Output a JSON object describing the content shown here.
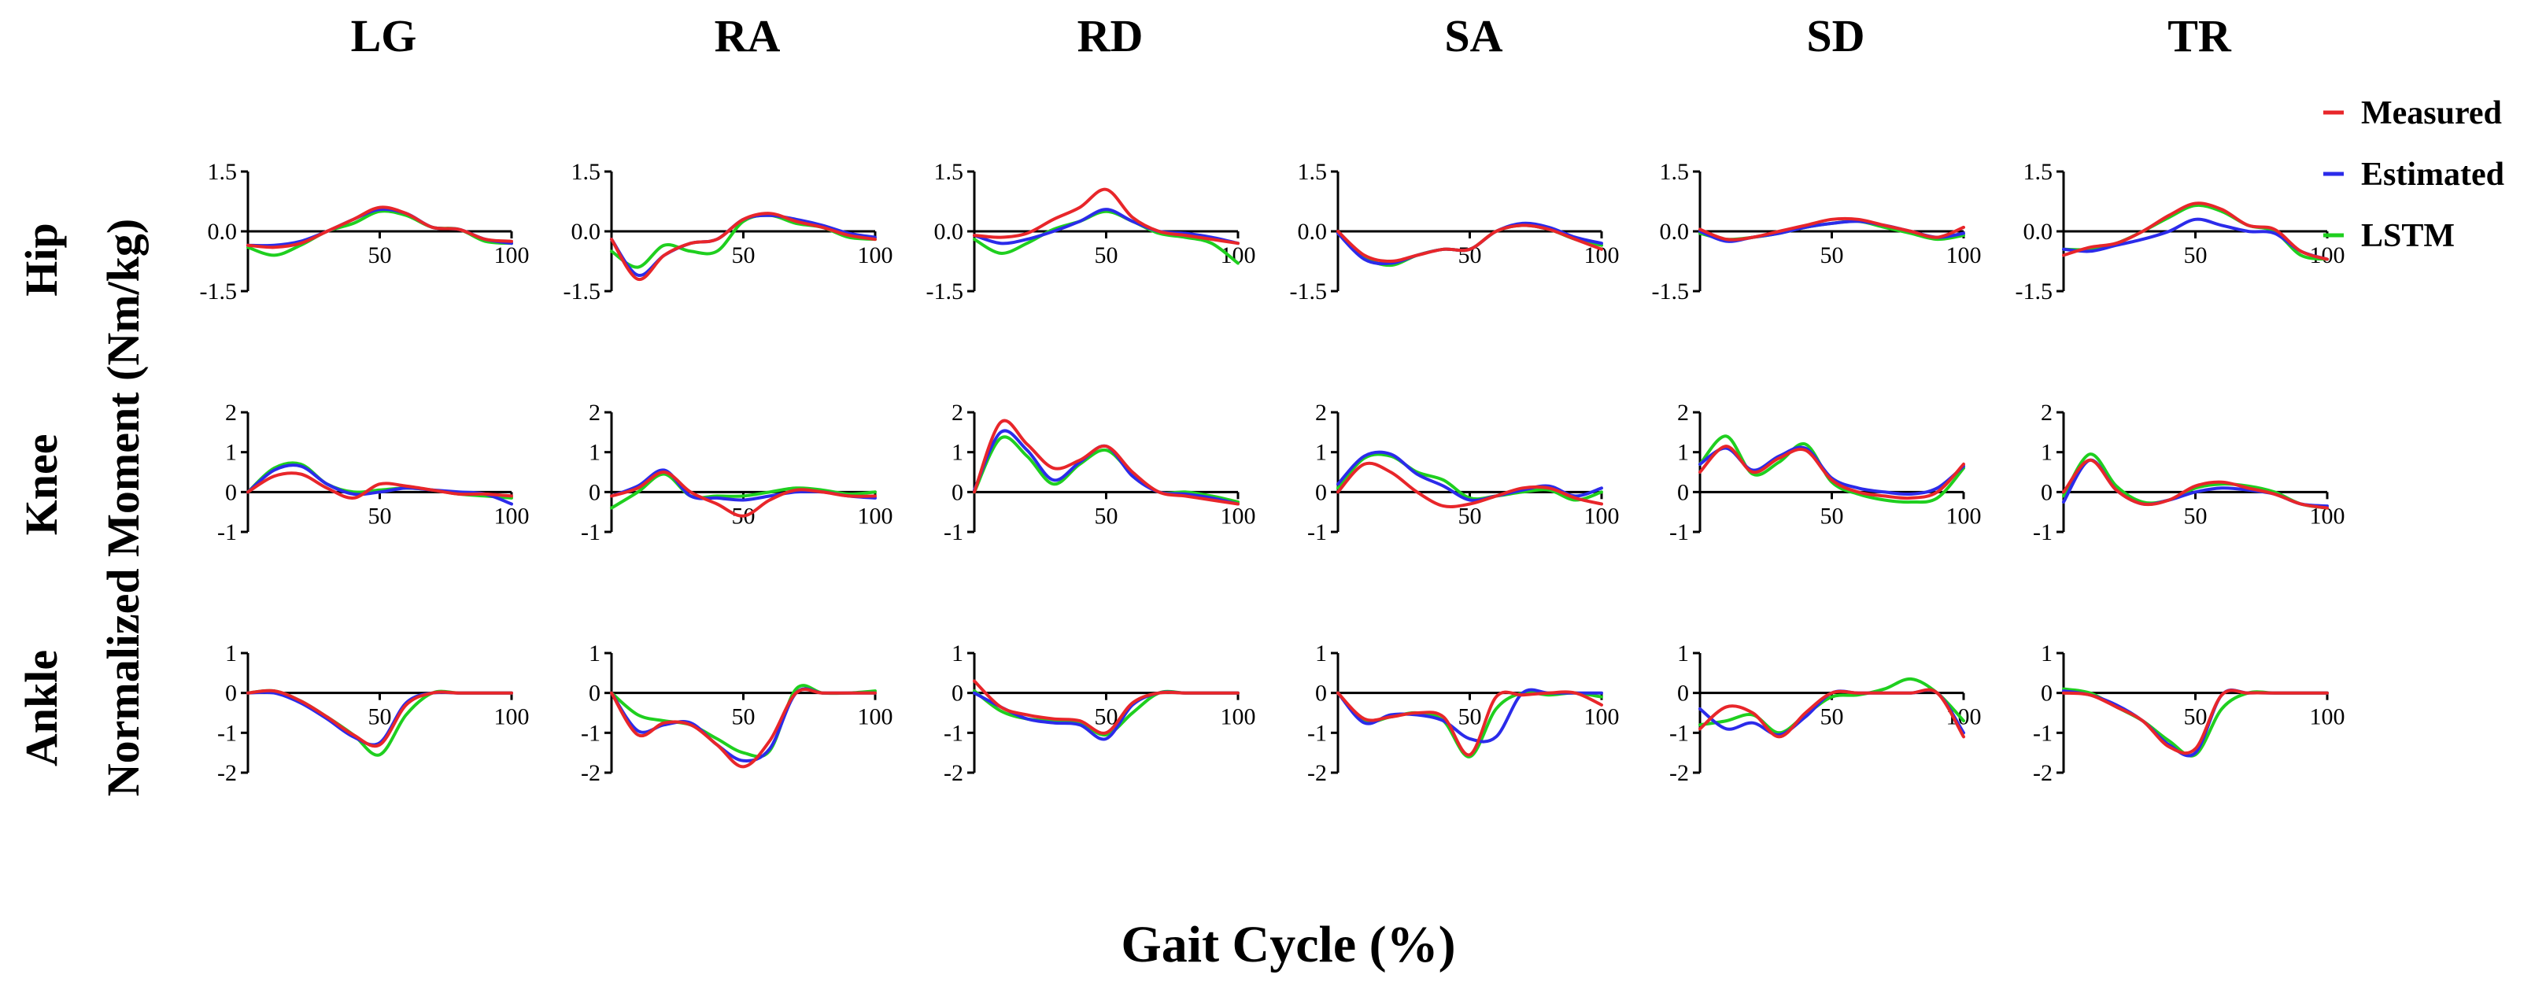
{
  "figure": {
    "ylabel": "Normalized Moment (Nm/kg)",
    "xlabel": "Gait Cycle (%)",
    "columns": [
      "LG",
      "RA",
      "RD",
      "SA",
      "SD",
      "TR"
    ],
    "rows": [
      "Hip",
      "Knee",
      "Ankle"
    ]
  },
  "legend": [
    {
      "label": "Measured",
      "color": "#e8262a"
    },
    {
      "label": "Estimated",
      "color": "#2b2bea"
    },
    {
      "label": "LSTM",
      "color": "#1fcf1f"
    }
  ],
  "chart_data": {
    "type": "line",
    "title": "",
    "xlabel": "Gait Cycle (%)",
    "ylabel": "Normalized Moment (Nm/kg)",
    "xlim": [
      0,
      100
    ],
    "x_ticks": [
      "50",
      "100"
    ],
    "series_names": [
      "Measured",
      "Estimated",
      "LSTM"
    ],
    "series_colors": {
      "Measured": "#e8262a",
      "Estimated": "#2b2bea",
      "LSTM": "#1fcf1f"
    },
    "rows": [
      {
        "name": "Hip",
        "ylim": [
          -1.5,
          1.5
        ],
        "y_ticks": [
          "1.5",
          "0.0",
          "-1.5"
        ]
      },
      {
        "name": "Knee",
        "ylim": [
          -1,
          2
        ],
        "y_ticks": [
          "2",
          "1",
          "0",
          "-1"
        ]
      },
      {
        "name": "Ankle",
        "ylim": [
          -2,
          1
        ],
        "y_ticks": [
          "1",
          "0",
          "-1",
          "-2"
        ]
      }
    ],
    "columns": [
      "LG",
      "RA",
      "RD",
      "SA",
      "SD",
      "TR"
    ],
    "panels": [
      {
        "row": "Hip",
        "column": "LG",
        "x": [
          0,
          10,
          20,
          30,
          40,
          50,
          60,
          70,
          80,
          90,
          100
        ],
        "Measured": [
          -0.35,
          -0.4,
          -0.3,
          0,
          0.3,
          0.6,
          0.45,
          0.1,
          0.05,
          -0.2,
          -0.25
        ],
        "Estimated": [
          -0.35,
          -0.35,
          -0.25,
          0,
          0.3,
          0.55,
          0.45,
          0.1,
          0.05,
          -0.2,
          -0.3
        ],
        "LSTM": [
          -0.4,
          -0.6,
          -0.35,
          0,
          0.2,
          0.5,
          0.4,
          0.1,
          0.05,
          -0.25,
          -0.3
        ]
      },
      {
        "row": "Hip",
        "column": "RA",
        "x": [
          0,
          10,
          20,
          30,
          40,
          50,
          60,
          70,
          80,
          90,
          100
        ],
        "Measured": [
          -0.2,
          -1.2,
          -0.6,
          -0.3,
          -0.2,
          0.3,
          0.45,
          0.25,
          0.1,
          -0.1,
          -0.2
        ],
        "Estimated": [
          -0.2,
          -1.1,
          -0.6,
          -0.3,
          -0.2,
          0.3,
          0.4,
          0.3,
          0.15,
          -0.05,
          -0.15
        ],
        "LSTM": [
          -0.5,
          -0.9,
          -0.35,
          -0.5,
          -0.5,
          0.25,
          0.4,
          0.2,
          0.1,
          -0.15,
          -0.2
        ]
      },
      {
        "row": "Hip",
        "column": "RD",
        "x": [
          0,
          10,
          20,
          30,
          40,
          50,
          60,
          70,
          80,
          90,
          100
        ],
        "Measured": [
          -0.1,
          -0.15,
          -0.05,
          0.3,
          0.6,
          1.05,
          0.35,
          0,
          -0.1,
          -0.2,
          -0.3
        ],
        "Estimated": [
          -0.1,
          -0.3,
          -0.2,
          0,
          0.25,
          0.55,
          0.25,
          0,
          -0.05,
          -0.15,
          -0.3
        ],
        "LSTM": [
          -0.2,
          -0.55,
          -0.3,
          0.05,
          0.25,
          0.5,
          0.25,
          -0.05,
          -0.15,
          -0.3,
          -0.8
        ]
      },
      {
        "row": "Hip",
        "column": "SA",
        "x": [
          0,
          10,
          20,
          30,
          40,
          50,
          60,
          70,
          80,
          90,
          100
        ],
        "Measured": [
          0,
          -0.6,
          -0.75,
          -0.6,
          -0.45,
          -0.45,
          0,
          0.15,
          0.05,
          -0.2,
          -0.45
        ],
        "Estimated": [
          -0.05,
          -0.7,
          -0.8,
          -0.6,
          -0.45,
          -0.45,
          0,
          0.2,
          0.1,
          -0.15,
          -0.3
        ],
        "LSTM": [
          -0.05,
          -0.65,
          -0.85,
          -0.6,
          -0.45,
          -0.45,
          0,
          0.15,
          0.05,
          -0.2,
          -0.35
        ]
      },
      {
        "row": "Hip",
        "column": "SD",
        "x": [
          0,
          10,
          20,
          30,
          40,
          50,
          60,
          70,
          80,
          90,
          100
        ],
        "Measured": [
          0.05,
          -0.2,
          -0.15,
          0,
          0.15,
          0.3,
          0.3,
          0.15,
          0,
          -0.15,
          0.1
        ],
        "Estimated": [
          0,
          -0.25,
          -0.15,
          -0.05,
          0.1,
          0.2,
          0.25,
          0.15,
          0,
          -0.15,
          -0.05
        ],
        "LSTM": [
          -0.05,
          -0.2,
          -0.15,
          -0.05,
          0.1,
          0.2,
          0.25,
          0.1,
          -0.05,
          -0.2,
          -0.1
        ]
      },
      {
        "row": "Hip",
        "column": "TR",
        "x": [
          0,
          10,
          20,
          30,
          40,
          50,
          60,
          70,
          80,
          90,
          100
        ],
        "Measured": [
          -0.6,
          -0.4,
          -0.3,
          0,
          0.4,
          0.7,
          0.55,
          0.15,
          0.05,
          -0.5,
          -0.7
        ],
        "Estimated": [
          -0.45,
          -0.5,
          -0.35,
          -0.2,
          0,
          0.3,
          0.15,
          0,
          -0.05,
          -0.5,
          -0.7
        ],
        "LSTM": [
          -0.45,
          -0.45,
          -0.3,
          0,
          0.35,
          0.65,
          0.5,
          0.15,
          0,
          -0.6,
          -0.7
        ]
      },
      {
        "row": "Knee",
        "column": "LG",
        "x": [
          0,
          10,
          20,
          30,
          40,
          50,
          60,
          70,
          80,
          90,
          100
        ],
        "Measured": [
          0,
          0.4,
          0.45,
          0.1,
          -0.15,
          0.2,
          0.15,
          0.05,
          -0.05,
          -0.05,
          -0.1
        ],
        "Estimated": [
          0,
          0.55,
          0.65,
          0.2,
          -0.05,
          0,
          0.1,
          0.05,
          0,
          -0.05,
          -0.3
        ],
        "LSTM": [
          0,
          0.6,
          0.7,
          0.2,
          0,
          0.05,
          0.1,
          0.05,
          -0.05,
          -0.1,
          -0.15
        ]
      },
      {
        "row": "Knee",
        "column": "RA",
        "x": [
          0,
          10,
          20,
          30,
          40,
          50,
          60,
          70,
          80,
          90,
          100
        ],
        "Measured": [
          -0.1,
          0.1,
          0.5,
          0,
          -0.3,
          -0.6,
          -0.2,
          0.05,
          0,
          -0.1,
          -0.1
        ],
        "Estimated": [
          -0.1,
          0.15,
          0.55,
          -0.1,
          -0.15,
          -0.2,
          -0.1,
          0,
          0,
          -0.1,
          -0.15
        ],
        "LSTM": [
          -0.4,
          0,
          0.45,
          -0.1,
          -0.1,
          -0.1,
          0,
          0.1,
          0.05,
          -0.05,
          0
        ]
      },
      {
        "row": "Knee",
        "column": "RD",
        "x": [
          0,
          10,
          20,
          30,
          40,
          50,
          60,
          70,
          80,
          90,
          100
        ],
        "Measured": [
          0,
          1.75,
          1.2,
          0.6,
          0.8,
          1.15,
          0.5,
          0,
          -0.1,
          -0.2,
          -0.3
        ],
        "Estimated": [
          0.05,
          1.5,
          1.05,
          0.3,
          0.75,
          1.15,
          0.4,
          0,
          -0.05,
          -0.15,
          -0.3
        ],
        "LSTM": [
          0,
          1.35,
          0.9,
          0.2,
          0.7,
          1.05,
          0.45,
          0,
          0,
          -0.1,
          -0.25
        ]
      },
      {
        "row": "Knee",
        "column": "SA",
        "x": [
          0,
          10,
          20,
          30,
          40,
          50,
          60,
          70,
          80,
          90,
          100
        ],
        "Measured": [
          0,
          0.7,
          0.5,
          0,
          -0.35,
          -0.3,
          -0.1,
          0.1,
          0.1,
          -0.15,
          -0.3
        ],
        "Estimated": [
          0.2,
          0.9,
          0.95,
          0.45,
          0.15,
          -0.2,
          -0.1,
          0.05,
          0.15,
          -0.1,
          0.1
        ],
        "LSTM": [
          0.1,
          0.85,
          0.9,
          0.5,
          0.3,
          -0.15,
          -0.1,
          0,
          0.05,
          -0.2,
          0
        ]
      },
      {
        "row": "Knee",
        "column": "SD",
        "x": [
          0,
          10,
          20,
          30,
          40,
          50,
          60,
          70,
          80,
          90,
          100
        ],
        "Measured": [
          0.5,
          1.15,
          0.5,
          0.85,
          1.05,
          0.3,
          0,
          -0.1,
          -0.15,
          0,
          0.7
        ],
        "Estimated": [
          0.7,
          1.1,
          0.55,
          0.9,
          1.1,
          0.35,
          0.1,
          0,
          -0.05,
          0.1,
          0.65
        ],
        "LSTM": [
          0.7,
          1.4,
          0.45,
          0.75,
          1.2,
          0.25,
          -0.05,
          -0.2,
          -0.25,
          -0.15,
          0.6
        ]
      },
      {
        "row": "Knee",
        "column": "TR",
        "x": [
          0,
          10,
          20,
          30,
          40,
          50,
          60,
          70,
          80,
          90,
          100
        ],
        "Measured": [
          0,
          0.8,
          0.05,
          -0.3,
          -0.2,
          0.15,
          0.25,
          0.1,
          -0.05,
          -0.3,
          -0.4
        ],
        "Estimated": [
          -0.25,
          0.8,
          0.05,
          -0.3,
          -0.2,
          0,
          0.1,
          0.05,
          -0.05,
          -0.3,
          -0.35
        ],
        "LSTM": [
          -0.1,
          0.95,
          0.15,
          -0.25,
          -0.2,
          0.1,
          0.2,
          0.15,
          0,
          -0.3,
          -0.4
        ]
      },
      {
        "row": "Ankle",
        "column": "LG",
        "x": [
          0,
          10,
          20,
          30,
          40,
          50,
          60,
          70,
          80,
          90,
          100
        ],
        "Measured": [
          0,
          0.05,
          -0.2,
          -0.6,
          -1.05,
          -1.3,
          -0.3,
          0,
          0,
          0,
          0
        ],
        "Estimated": [
          0,
          0,
          -0.25,
          -0.65,
          -1.1,
          -1.25,
          -0.25,
          0,
          0,
          0,
          0
        ],
        "LSTM": [
          0,
          0.05,
          -0.2,
          -0.6,
          -1.05,
          -1.55,
          -0.55,
          0,
          0,
          0,
          0
        ]
      },
      {
        "row": "Ankle",
        "column": "RA",
        "x": [
          0,
          10,
          20,
          30,
          40,
          50,
          60,
          70,
          80,
          90,
          100
        ],
        "Measured": [
          0,
          -1.05,
          -0.75,
          -0.8,
          -1.3,
          -1.85,
          -1.2,
          0,
          0,
          0,
          0
        ],
        "Estimated": [
          0,
          -0.95,
          -0.8,
          -0.75,
          -1.3,
          -1.7,
          -1.4,
          0,
          0,
          0,
          0
        ],
        "LSTM": [
          0,
          -0.55,
          -0.7,
          -0.8,
          -1.15,
          -1.5,
          -1.45,
          0.1,
          0,
          0,
          0.05
        ]
      },
      {
        "row": "Ankle",
        "column": "RD",
        "x": [
          0,
          10,
          20,
          30,
          40,
          50,
          60,
          70,
          80,
          90,
          100
        ],
        "Measured": [
          0.3,
          -0.35,
          -0.55,
          -0.65,
          -0.7,
          -1,
          -0.25,
          0,
          0,
          0,
          0
        ],
        "Estimated": [
          0,
          -0.35,
          -0.65,
          -0.75,
          -0.8,
          -1.15,
          -0.3,
          0,
          0,
          0,
          0
        ],
        "LSTM": [
          0.05,
          -0.45,
          -0.65,
          -0.7,
          -0.75,
          -1.05,
          -0.5,
          0,
          0,
          0,
          0
        ]
      },
      {
        "row": "Ankle",
        "column": "SA",
        "x": [
          0,
          10,
          20,
          30,
          40,
          50,
          60,
          70,
          80,
          90,
          100
        ],
        "Measured": [
          0,
          -0.65,
          -0.6,
          -0.5,
          -0.6,
          -1.55,
          -0.1,
          -0.05,
          0,
          0,
          -0.3
        ],
        "Estimated": [
          0,
          -0.75,
          -0.55,
          -0.55,
          -0.7,
          -1.15,
          -1.1,
          0,
          0,
          0,
          0
        ],
        "LSTM": [
          0,
          -0.7,
          -0.6,
          -0.5,
          -0.7,
          -1.6,
          -0.4,
          0,
          -0.05,
          0,
          -0.1
        ]
      },
      {
        "row": "Ankle",
        "column": "SD",
        "x": [
          0,
          10,
          20,
          30,
          40,
          50,
          60,
          70,
          80,
          90,
          100
        ],
        "Measured": [
          -0.9,
          -0.35,
          -0.5,
          -1.1,
          -0.5,
          0,
          0,
          0,
          0,
          0,
          -1.1
        ],
        "Estimated": [
          -0.4,
          -0.9,
          -0.75,
          -1.05,
          -0.6,
          0,
          0,
          0,
          0,
          0,
          -1
        ],
        "LSTM": [
          -0.8,
          -0.7,
          -0.55,
          -1,
          -0.55,
          -0.1,
          -0.05,
          0.1,
          0.35,
          0,
          -0.7
        ]
      },
      {
        "row": "Ankle",
        "column": "TR",
        "x": [
          0,
          10,
          20,
          30,
          40,
          50,
          60,
          70,
          80,
          90,
          100
        ],
        "Measured": [
          0,
          -0.05,
          -0.35,
          -0.7,
          -1.35,
          -1.4,
          -0.05,
          0,
          0,
          0,
          0
        ],
        "Estimated": [
          0.05,
          -0.05,
          -0.3,
          -0.7,
          -1.3,
          -1.5,
          -0.05,
          0,
          0,
          0,
          0
        ],
        "LSTM": [
          0.1,
          0,
          -0.35,
          -0.7,
          -1.2,
          -1.55,
          -0.4,
          0,
          0,
          0,
          0
        ]
      }
    ]
  }
}
